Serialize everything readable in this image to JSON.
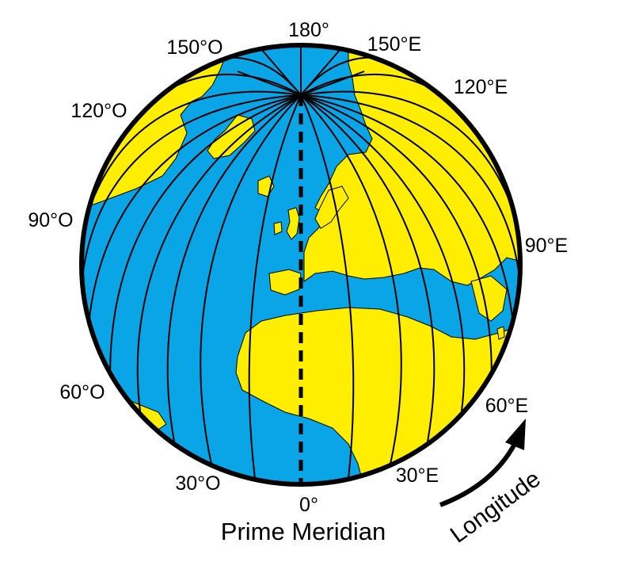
{
  "colors": {
    "ocean": "#0aa5e6",
    "land": "#ffee00",
    "outline": "#000000",
    "background": "#ffffff"
  },
  "labels": {
    "lon_180": "180°",
    "lon_150w": "150°O",
    "lon_150e": "150°E",
    "lon_120w": "120°O",
    "lon_120e": "120°E",
    "lon_90w": "90°O",
    "lon_90e": "90°E",
    "lon_60w": "60°O",
    "lon_60e": "60°E",
    "lon_30w": "30°O",
    "lon_30e": "30°E",
    "lon_0": "0°",
    "prime_meridian": "Prime Meridian",
    "longitude": "Longitude"
  },
  "icons": {
    "rotation_arrow": "curved-arrow-icon"
  }
}
